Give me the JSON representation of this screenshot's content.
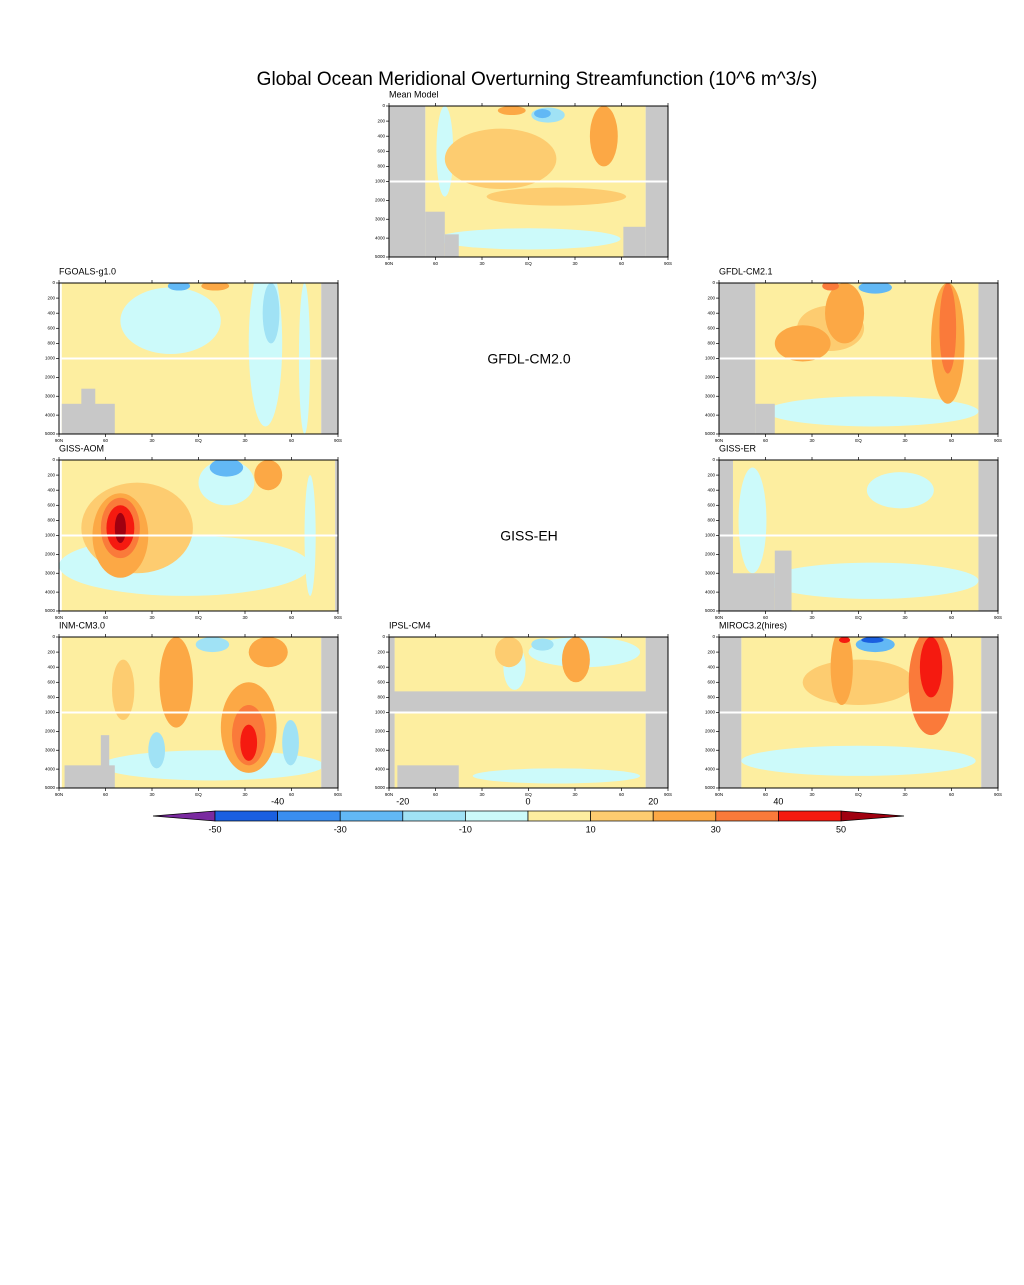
{
  "chart_data": {
    "type": "contour",
    "title": "Global Ocean Meridional Overturning Streamfunction (10^6 m^3/s)",
    "panels": [
      "Mean Model",
      "FGOALS-g1.0",
      "GFDL-CM2.1",
      "GISS-AOM",
      "GISS-ER",
      "INM-CM3.0",
      "IPSL-CM4",
      "MIROC3.2(hires)"
    ],
    "missing_panels": [
      "GFDL-CM2.0",
      "GISS-EH"
    ],
    "xlim": [
      90,
      -90
    ],
    "xticks": [
      {
        "value": 90,
        "label": "90N"
      },
      60,
      30,
      {
        "value": 0,
        "label": "EQ"
      },
      {
        "value": -30,
        "label": "30"
      },
      {
        "value": -60,
        "label": "60"
      },
      {
        "value": -90,
        "label": "90S"
      }
    ],
    "ylim": [
      0,
      5000
    ],
    "ybreak": 1000,
    "yticks": [
      0,
      200,
      400,
      600,
      800,
      1000,
      2000,
      3000,
      4000,
      5000
    ],
    "land_color": "#c8c8c8",
    "colorbar": {
      "levels": [
        -50,
        -40,
        -30,
        -20,
        -10,
        0,
        10,
        20,
        30,
        40,
        50
      ],
      "colors": [
        "#7a2aa0",
        "#1a5fe0",
        "#3a8ef0",
        "#62b8f5",
        "#a0e2f5",
        "#ccfafa",
        "#fdeea0",
        "#fdcc70",
        "#fca845",
        "#fa7a3a",
        "#f51a10",
        "#a00010"
      ]
    }
  }
}
